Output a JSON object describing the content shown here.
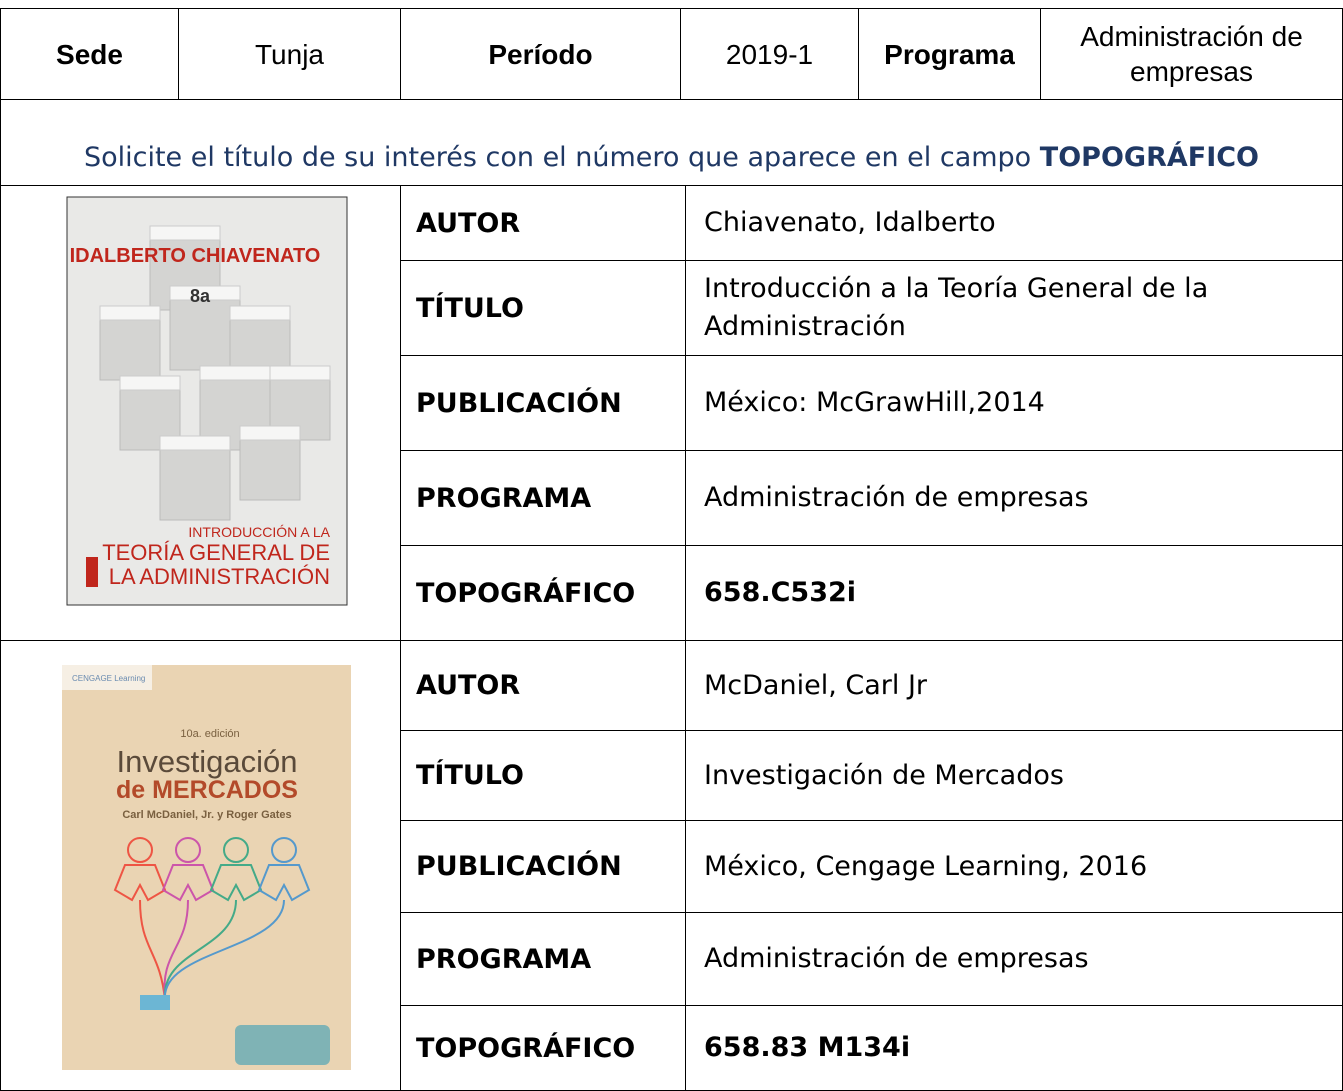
{
  "header": {
    "sede_label": "Sede",
    "sede": "Tunja",
    "periodo_label": "Período",
    "periodo": "2019-1",
    "programa_label": "Programa",
    "programa": "Administración de empresas"
  },
  "notice": {
    "text": "Solicite el título de su interés con el número que aparece en el campo",
    "emphasis": "TOPOGRÁFICO"
  },
  "books": [
    {
      "cover": {
        "author": "IDALBERTO CHIAVENATO",
        "edition": "8a",
        "line1": "INTRODUCCIÓN A LA",
        "line2": "TEORÍA GENERAL DE",
        "line3": "LA ADMINISTRACIÓN"
      },
      "rows": [
        [
          "AUTOR",
          "Chiavenato, Idalberto"
        ],
        [
          "TÍTULO",
          "Introducción a la Teoría General de la Administración"
        ],
        [
          "PUBLICACIÓN",
          "México: McGrawHill,2014"
        ],
        [
          "PROGRAMA",
          "Administración de empresas"
        ],
        [
          "TOPOGRÁFICO",
          "658.C532i"
        ]
      ]
    },
    {
      "cover": {
        "publisher": "CENGAGE Learning",
        "edition": "10a. edición",
        "line1": "Investigación",
        "line2": "de MERCADOS",
        "authors": "Carl McDaniel, Jr. y Roger Gates"
      },
      "rows": [
        [
          "AUTOR",
          "McDaniel, Carl Jr"
        ],
        [
          "TÍTULO",
          "Investigación de Mercados"
        ],
        [
          "PUBLICACIÓN",
          "México, Cengage Learning, 2016"
        ],
        [
          "PROGRAMA",
          "Administración de empresas"
        ],
        [
          "TOPOGRÁFICO",
          "658.83 M134i"
        ]
      ]
    }
  ]
}
